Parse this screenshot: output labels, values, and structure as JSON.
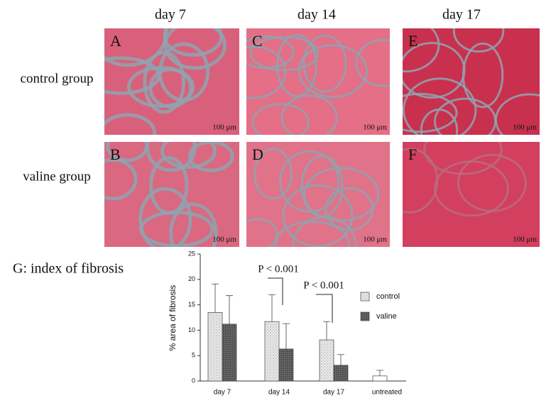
{
  "column_headers": [
    "day 7",
    "day 14",
    "day 17"
  ],
  "row_labels": [
    "control group",
    "valine group"
  ],
  "panels": [
    {
      "letter": "A",
      "scale": "100 μm"
    },
    {
      "letter": "C",
      "scale": "100 μm"
    },
    {
      "letter": "E",
      "scale": "100 μm"
    },
    {
      "letter": "B",
      "scale": "100 μm"
    },
    {
      "letter": "D",
      "scale": "100 μm"
    },
    {
      "letter": "F",
      "scale": "100 μm"
    }
  ],
  "chart_data": {
    "type": "bar",
    "title": "G: index of fibrosis",
    "y_label": "% area of fibrosis",
    "categories": [
      "day 7",
      "day 14",
      "day 17",
      "untreated"
    ],
    "series": [
      {
        "name": "control",
        "color": "#e4e4e4",
        "values": [
          13.5,
          11.7,
          8.1,
          1.0
        ],
        "errors": [
          5.6,
          5.3,
          3.6,
          1.1
        ]
      },
      {
        "name": "valine",
        "color": "#666666",
        "values": [
          11.2,
          6.3,
          3.1,
          null
        ],
        "errors": [
          5.6,
          5.0,
          2.1,
          null
        ]
      }
    ],
    "ylim": [
      0,
      25
    ],
    "yticks": [
      0,
      5,
      10,
      15,
      20,
      25
    ],
    "annotations": [
      "P < 0.001",
      "P < 0.001"
    ],
    "grid": false
  }
}
